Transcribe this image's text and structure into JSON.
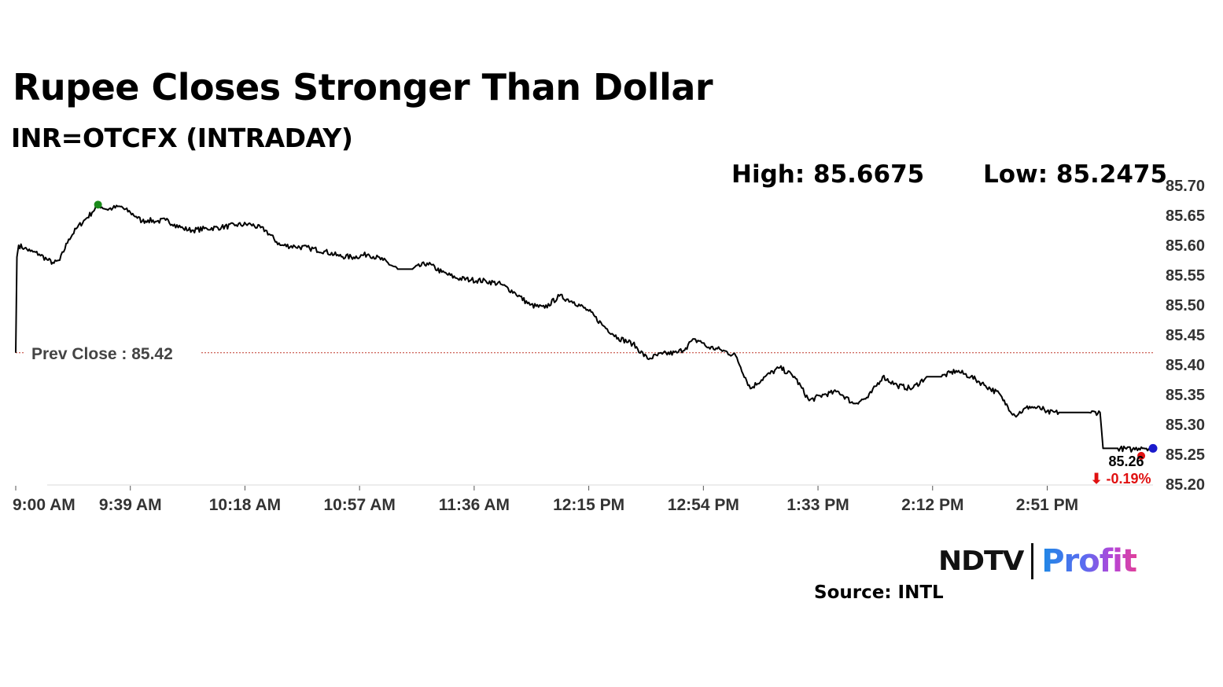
{
  "header": {
    "title": "Rupee Closes Stronger Than Dollar",
    "subtitle": "INR=OTCFX (INTRADAY)"
  },
  "stats": {
    "high": "High: 85.6675",
    "low": "Low: 85.2475"
  },
  "footer": {
    "brand_ndtv": "NDTV",
    "brand_profit": "Profit",
    "source": "Source: INTL"
  },
  "chart_data": {
    "type": "line",
    "title": "Rupee Closes Stronger Than Dollar",
    "subtitle": "INR=OTCFX (INTRADAY)",
    "xlabel": "",
    "ylabel": "",
    "x_ticks": [
      "9:00 AM",
      "9:39 AM",
      "10:18 AM",
      "10:57 AM",
      "11:36 AM",
      "12:15 PM",
      "12:54 PM",
      "1:33 PM",
      "2:12 PM",
      "2:51 PM"
    ],
    "y_ticks": [
      "85.70",
      "85.65",
      "85.60",
      "85.55",
      "85.50",
      "85.45",
      "85.40",
      "85.35",
      "85.30",
      "85.25",
      "85.20"
    ],
    "ylim": [
      85.2,
      85.7
    ],
    "xlim_minutes": [
      0,
      387
    ],
    "y_axis_side": "right",
    "grid": false,
    "series": [
      {
        "color": "#000000",
        "x_minutes": [
          0,
          0.4,
          1,
          3,
          5,
          8,
          11,
          13,
          15,
          18,
          21,
          24,
          26,
          28,
          31,
          33,
          36,
          37,
          39,
          41,
          43,
          45,
          48,
          51,
          54,
          57,
          60,
          65,
          70,
          75,
          80,
          85,
          90,
          95,
          100,
          105,
          110,
          115,
          120,
          125,
          130,
          135,
          140,
          145,
          150,
          155,
          160,
          165,
          170,
          175,
          180,
          185,
          190,
          195,
          200,
          205,
          210,
          215,
          220,
          225,
          228,
          230,
          233,
          235,
          240,
          245,
          250,
          255,
          260,
          265,
          270,
          275,
          280,
          285,
          290,
          295,
          300,
          305,
          310,
          315,
          320,
          325,
          330,
          335,
          336,
          340,
          345,
          350,
          350.5,
          355,
          360,
          365,
          369,
          370,
          375,
          380,
          383,
          386
        ],
        "values": [
          85.42,
          85.58,
          85.6,
          85.595,
          85.59,
          85.585,
          85.575,
          85.57,
          85.575,
          85.61,
          85.63,
          85.645,
          85.655,
          85.668,
          85.66,
          85.662,
          85.665,
          85.66,
          85.655,
          85.648,
          85.64,
          85.642,
          85.64,
          85.642,
          85.635,
          85.628,
          85.625,
          85.628,
          85.63,
          85.634,
          85.635,
          85.625,
          85.6,
          85.598,
          85.595,
          85.59,
          85.582,
          85.58,
          85.585,
          85.575,
          85.56,
          85.56,
          85.57,
          85.555,
          85.545,
          85.542,
          85.54,
          85.535,
          85.52,
          85.5,
          85.495,
          85.515,
          85.505,
          85.49,
          85.465,
          85.445,
          85.435,
          85.41,
          85.418,
          85.42,
          85.428,
          85.44,
          85.44,
          85.43,
          85.425,
          85.415,
          85.36,
          85.38,
          85.395,
          85.38,
          85.34,
          85.35,
          85.355,
          85.335,
          85.345,
          85.38,
          85.365,
          85.36,
          85.38,
          85.38,
          85.39,
          85.38,
          85.365,
          85.35,
          85.34,
          85.315,
          85.33,
          85.325,
          85.32,
          85.32,
          85.32,
          85.32,
          85.32,
          85.26,
          85.26,
          85.258,
          85.262,
          85.26
        ]
      }
    ],
    "annotations": {
      "prev_close_label": "Prev Close : 85.42",
      "prev_close_value": 85.42,
      "high_marker": {
        "x_minutes": 28,
        "value": 85.668,
        "color": "#1a8a1a"
      },
      "low_marker": {
        "x_minutes": 383,
        "value": 85.2475,
        "color": "#e01010"
      },
      "last_marker": {
        "x_minutes": 387,
        "value": 85.26,
        "color": "#1a1acc"
      },
      "last_label": "85.26",
      "change_label": "⬇ -0.19%",
      "change_color": "#e01010"
    }
  }
}
